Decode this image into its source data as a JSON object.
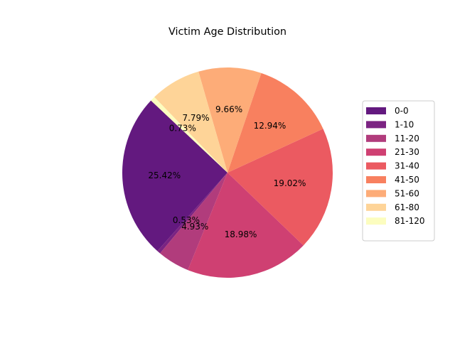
{
  "chart_data": {
    "type": "pie",
    "title": "Victim Age Distribution",
    "categories": [
      "0-0",
      "1-10",
      "11-20",
      "21-30",
      "31-40",
      "41-50",
      "51-60",
      "61-80",
      "81-120"
    ],
    "values": [
      25.42,
      0.53,
      4.93,
      18.98,
      19.02,
      12.94,
      9.66,
      7.79,
      0.73
    ],
    "labels": [
      "25.42%",
      "0.53%",
      "4.93%",
      "18.98%",
      "19.02%",
      "12.94%",
      "9.66%",
      "7.79%",
      "0.73%"
    ],
    "colors": [
      "#63197f",
      "#7b2382",
      "#b13c7c",
      "#cf4072",
      "#eb5a61",
      "#f8805f",
      "#fdac78",
      "#fed498",
      "#fcfdbf"
    ],
    "start_angle_deg": 136.7,
    "direction": "counterclockwise",
    "legend_position": "right"
  }
}
